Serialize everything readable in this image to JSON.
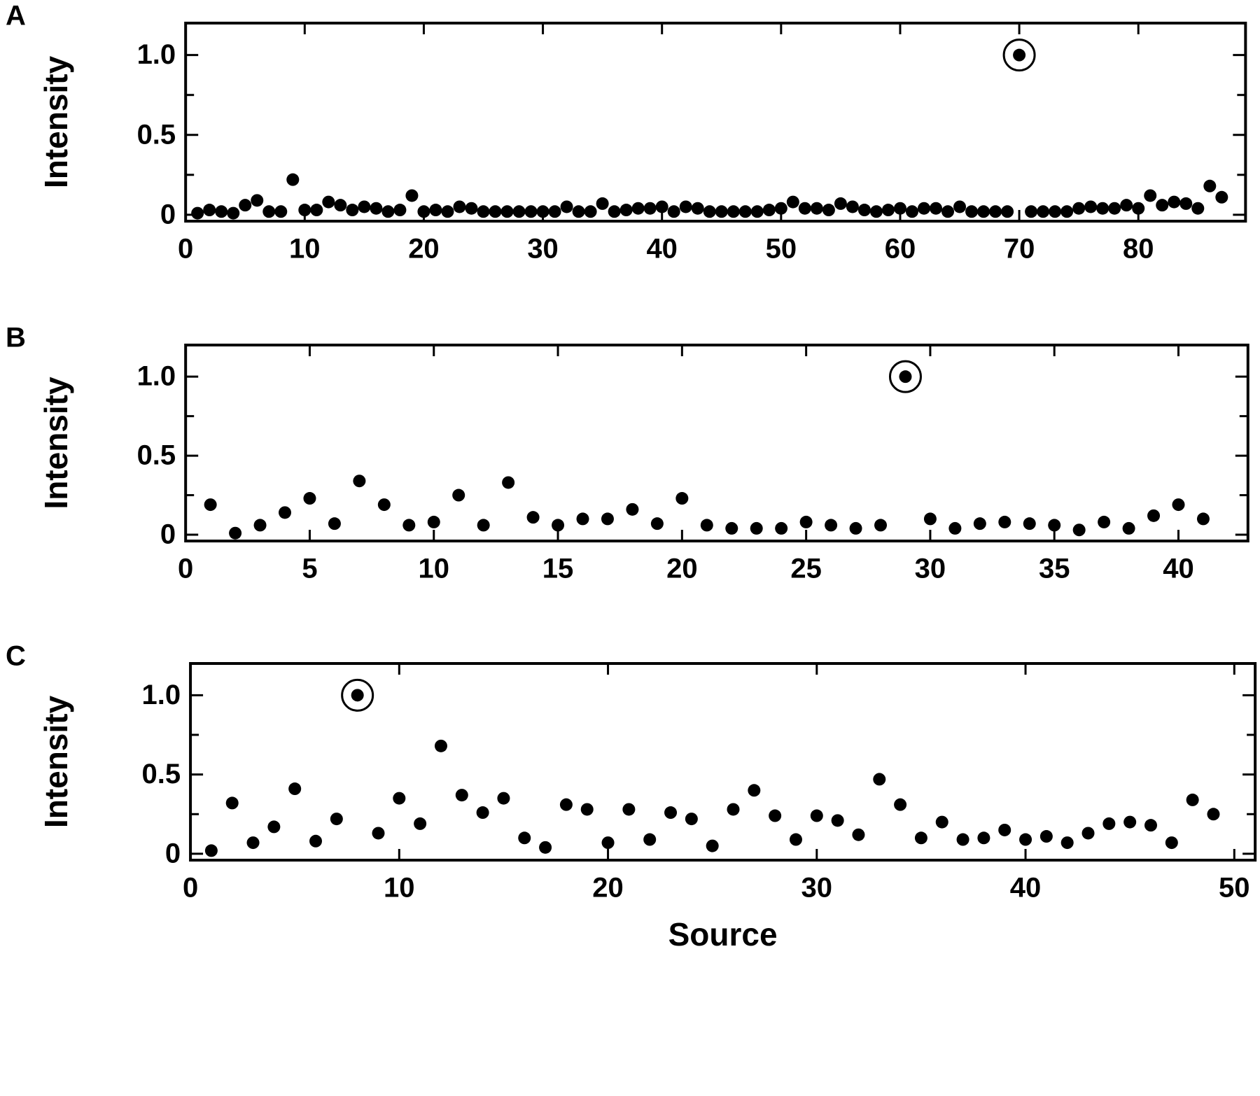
{
  "chart_data": [
    {
      "type": "scatter",
      "panel_label": "A",
      "ylabel": "Intensity",
      "color": "#000000",
      "circled_x": 70,
      "x": [
        1,
        2,
        3,
        4,
        5,
        6,
        7,
        8,
        9,
        10,
        11,
        12,
        13,
        14,
        15,
        16,
        17,
        18,
        19,
        20,
        21,
        22,
        23,
        24,
        25,
        26,
        27,
        28,
        29,
        30,
        31,
        32,
        33,
        34,
        35,
        36,
        37,
        38,
        39,
        40,
        41,
        42,
        43,
        44,
        45,
        46,
        47,
        48,
        49,
        50,
        51,
        52,
        53,
        54,
        55,
        56,
        57,
        58,
        59,
        60,
        61,
        62,
        63,
        64,
        65,
        66,
        67,
        68,
        69,
        70,
        71,
        72,
        73,
        74,
        75,
        76,
        77,
        78,
        79,
        80,
        81,
        82,
        83,
        84,
        85,
        86,
        87
      ],
      "values": [
        0.01,
        0.03,
        0.02,
        0.01,
        0.06,
        0.09,
        0.02,
        0.02,
        0.22,
        0.03,
        0.03,
        0.08,
        0.06,
        0.03,
        0.05,
        0.04,
        0.02,
        0.03,
        0.12,
        0.02,
        0.03,
        0.02,
        0.05,
        0.04,
        0.02,
        0.02,
        0.02,
        0.02,
        0.02,
        0.02,
        0.02,
        0.05,
        0.02,
        0.02,
        0.07,
        0.02,
        0.03,
        0.04,
        0.04,
        0.05,
        0.02,
        0.05,
        0.04,
        0.02,
        0.02,
        0.02,
        0.02,
        0.02,
        0.03,
        0.04,
        0.08,
        0.04,
        0.04,
        0.03,
        0.07,
        0.05,
        0.03,
        0.02,
        0.03,
        0.04,
        0.02,
        0.04,
        0.04,
        0.02,
        0.05,
        0.02,
        0.02,
        0.02,
        0.02,
        1.0,
        0.02,
        0.02,
        0.02,
        0.02,
        0.04,
        0.05,
        0.04,
        0.04,
        0.06,
        0.04,
        0.12,
        0.06,
        0.08,
        0.07,
        0.04,
        0.18,
        0.11
      ],
      "xlim": [
        0,
        89
      ],
      "ylim": [
        -0.04,
        1.2
      ],
      "xticks": [
        0,
        10,
        20,
        30,
        40,
        50,
        60,
        70,
        80
      ],
      "yticks": [
        0,
        0.5,
        {
          "value": 1,
          "label": "1.0"
        }
      ],
      "y_minor_ticks": [
        0.25,
        0.75
      ]
    },
    {
      "type": "scatter",
      "panel_label": "B",
      "ylabel": "Intensity",
      "color": "#000000",
      "circled_x": 29,
      "x": [
        1,
        2,
        3,
        4,
        5,
        6,
        7,
        8,
        9,
        10,
        11,
        12,
        13,
        14,
        15,
        16,
        17,
        18,
        19,
        20,
        21,
        22,
        23,
        24,
        25,
        26,
        27,
        28,
        29,
        30,
        31,
        32,
        33,
        34,
        35,
        36,
        37,
        38,
        39,
        40,
        41
      ],
      "values": [
        0.19,
        0.01,
        0.06,
        0.14,
        0.23,
        0.07,
        0.34,
        0.19,
        0.06,
        0.08,
        0.25,
        0.06,
        0.33,
        0.11,
        0.06,
        0.1,
        0.1,
        0.16,
        0.07,
        0.23,
        0.06,
        0.04,
        0.04,
        0.04,
        0.08,
        0.06,
        0.04,
        0.06,
        1.0,
        0.1,
        0.04,
        0.07,
        0.08,
        0.07,
        0.06,
        0.03,
        0.08,
        0.04,
        0.12,
        0.19,
        0.1
      ],
      "xlim": [
        0,
        42.8
      ],
      "ylim": [
        -0.04,
        1.2
      ],
      "xticks": [
        0,
        5,
        10,
        15,
        20,
        25,
        30,
        35,
        40
      ],
      "yticks": [
        0,
        0.5,
        {
          "value": 1,
          "label": "1.0"
        }
      ],
      "y_minor_ticks": [
        0.25,
        0.75
      ]
    },
    {
      "type": "scatter",
      "panel_label": "C",
      "ylabel": "Intensity",
      "xlabel": "Source",
      "color": "#000000",
      "circled_x": 8,
      "x": [
        1,
        2,
        3,
        4,
        5,
        6,
        7,
        8,
        9,
        10,
        11,
        12,
        13,
        14,
        15,
        16,
        17,
        18,
        19,
        20,
        21,
        22,
        23,
        24,
        25,
        26,
        27,
        28,
        29,
        30,
        31,
        32,
        33,
        34,
        35,
        36,
        37,
        38,
        39,
        40,
        41,
        42,
        43,
        44,
        45,
        46,
        47,
        48,
        49
      ],
      "values": [
        0.02,
        0.32,
        0.07,
        0.17,
        0.41,
        0.08,
        0.22,
        1.0,
        0.13,
        0.35,
        0.19,
        0.68,
        0.37,
        0.26,
        0.35,
        0.1,
        0.04,
        0.31,
        0.28,
        0.07,
        0.28,
        0.09,
        0.26,
        0.22,
        0.05,
        0.28,
        0.4,
        0.24,
        0.09,
        0.24,
        0.21,
        0.12,
        0.47,
        0.31,
        0.1,
        0.2,
        0.09,
        0.1,
        0.15,
        0.09,
        0.11,
        0.07,
        0.13,
        0.19,
        0.2,
        0.18,
        0.07,
        0.34,
        0.25
      ],
      "xlim": [
        0,
        51
      ],
      "ylim": [
        -0.04,
        1.2
      ],
      "xticks": [
        0,
        10,
        20,
        30,
        40,
        50
      ],
      "yticks": [
        0,
        0.5,
        {
          "value": 1,
          "label": "1.0"
        }
      ],
      "y_minor_ticks": [
        0.25,
        0.75
      ]
    }
  ]
}
